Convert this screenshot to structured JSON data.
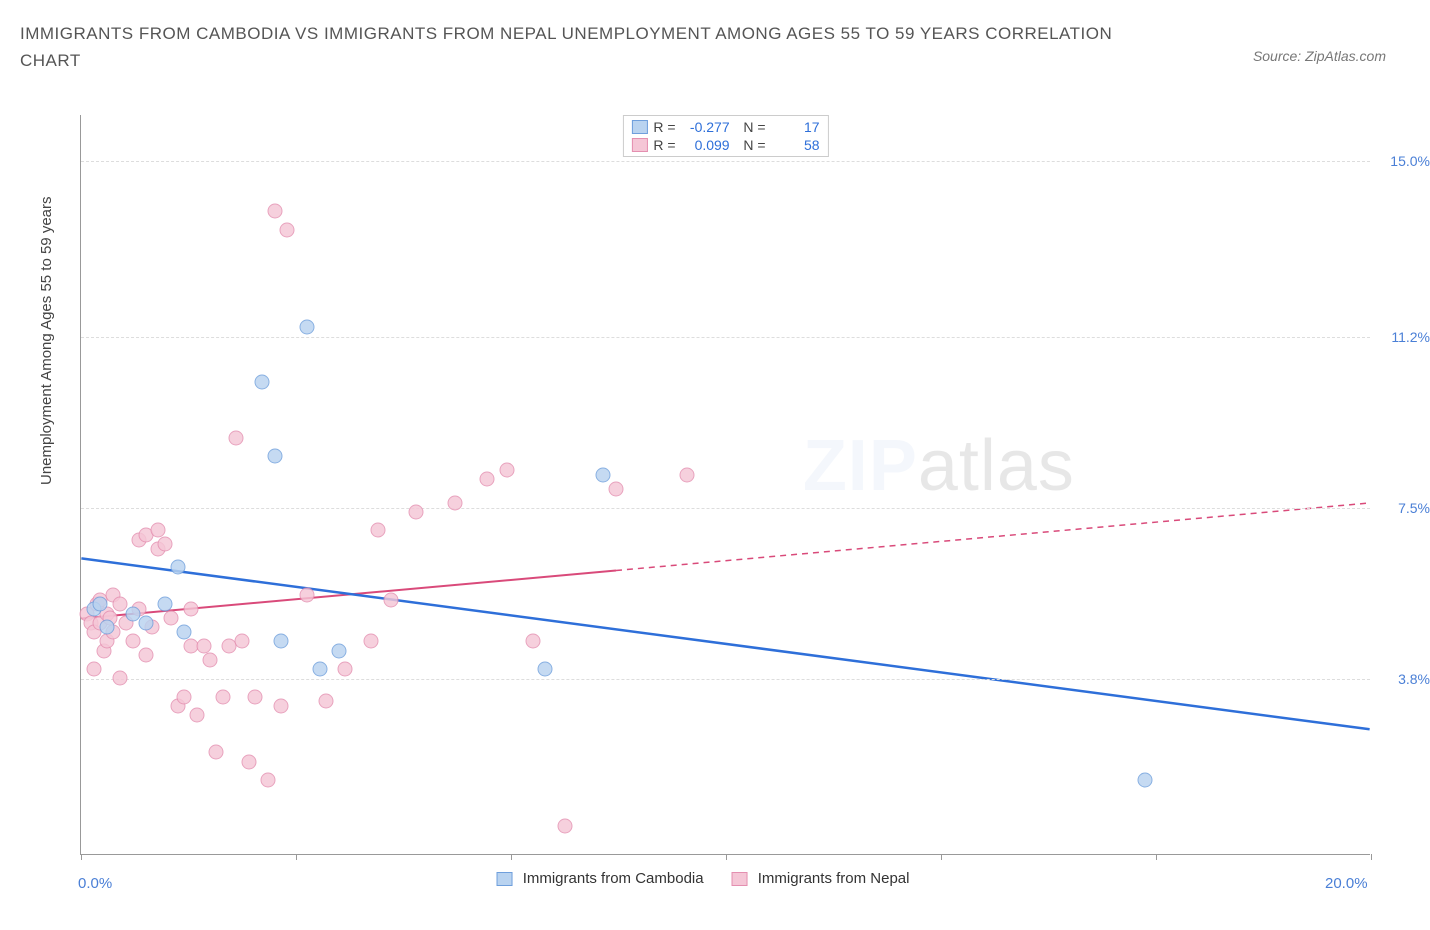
{
  "title": "IMMIGRANTS FROM CAMBODIA VS IMMIGRANTS FROM NEPAL UNEMPLOYMENT AMONG AGES 55 TO 59 YEARS CORRELATION CHART",
  "source": "Source: ZipAtlas.com",
  "ylabel": "Unemployment Among Ages 55 to 59 years",
  "xaxis": {
    "min_label": "0.0%",
    "max_label": "20.0%",
    "min": 0,
    "max": 20
  },
  "yaxis": {
    "min": 0,
    "max": 16,
    "ticks": [
      {
        "v": 3.8,
        "label": "3.8%"
      },
      {
        "v": 7.5,
        "label": "7.5%"
      },
      {
        "v": 11.2,
        "label": "11.2%"
      },
      {
        "v": 15.0,
        "label": "15.0%"
      }
    ]
  },
  "xticks_minor": [
    0,
    3.33,
    6.67,
    10,
    13.33,
    16.67,
    20
  ],
  "series": {
    "cambodia": {
      "label": "Immigrants from Cambodia",
      "fill": "#b9d3f0",
      "stroke": "#6f9fdc",
      "line_color": "#2e6fd9",
      "R": "-0.277",
      "N": "17",
      "trend": {
        "x1": 0,
        "y1": 6.4,
        "x2": 20,
        "y2": 2.7,
        "dashed": false,
        "solid_until_x": 20
      },
      "points": [
        {
          "x": 0.2,
          "y": 5.3
        },
        {
          "x": 0.3,
          "y": 5.4
        },
        {
          "x": 0.4,
          "y": 4.9
        },
        {
          "x": 0.8,
          "y": 5.2
        },
        {
          "x": 1.0,
          "y": 5.0
        },
        {
          "x": 1.3,
          "y": 5.4
        },
        {
          "x": 1.5,
          "y": 6.2
        },
        {
          "x": 1.6,
          "y": 4.8
        },
        {
          "x": 2.8,
          "y": 10.2
        },
        {
          "x": 3.0,
          "y": 8.6
        },
        {
          "x": 3.1,
          "y": 4.6
        },
        {
          "x": 3.5,
          "y": 11.4
        },
        {
          "x": 3.7,
          "y": 4.0
        },
        {
          "x": 4.0,
          "y": 4.4
        },
        {
          "x": 7.2,
          "y": 4.0
        },
        {
          "x": 8.1,
          "y": 8.2
        },
        {
          "x": 16.5,
          "y": 1.6
        }
      ]
    },
    "nepal": {
      "label": "Immigrants from Nepal",
      "fill": "#f5c6d6",
      "stroke": "#e48fb0",
      "line_color": "#d94a7a",
      "R": "0.099",
      "N": "58",
      "trend": {
        "x1": 0,
        "y1": 5.1,
        "x2": 20,
        "y2": 7.6,
        "dashed": true,
        "solid_until_x": 8.3
      },
      "points": [
        {
          "x": 0.1,
          "y": 5.2
        },
        {
          "x": 0.15,
          "y": 5.0
        },
        {
          "x": 0.2,
          "y": 4.0
        },
        {
          "x": 0.2,
          "y": 4.8
        },
        {
          "x": 0.25,
          "y": 5.4
        },
        {
          "x": 0.3,
          "y": 5.5
        },
        {
          "x": 0.3,
          "y": 5.0
        },
        {
          "x": 0.35,
          "y": 4.4
        },
        {
          "x": 0.4,
          "y": 4.6
        },
        {
          "x": 0.4,
          "y": 5.2
        },
        {
          "x": 0.45,
          "y": 5.1
        },
        {
          "x": 0.5,
          "y": 5.6
        },
        {
          "x": 0.5,
          "y": 4.8
        },
        {
          "x": 0.6,
          "y": 5.4
        },
        {
          "x": 0.6,
          "y": 3.8
        },
        {
          "x": 0.7,
          "y": 5.0
        },
        {
          "x": 0.8,
          "y": 4.6
        },
        {
          "x": 0.9,
          "y": 5.3
        },
        {
          "x": 0.9,
          "y": 6.8
        },
        {
          "x": 1.0,
          "y": 4.3
        },
        {
          "x": 1.0,
          "y": 6.9
        },
        {
          "x": 1.1,
          "y": 4.9
        },
        {
          "x": 1.2,
          "y": 6.6
        },
        {
          "x": 1.2,
          "y": 7.0
        },
        {
          "x": 1.3,
          "y": 6.7
        },
        {
          "x": 1.4,
          "y": 5.1
        },
        {
          "x": 1.5,
          "y": 3.2
        },
        {
          "x": 1.6,
          "y": 3.4
        },
        {
          "x": 1.7,
          "y": 5.3
        },
        {
          "x": 1.7,
          "y": 4.5
        },
        {
          "x": 1.8,
          "y": 3.0
        },
        {
          "x": 1.9,
          "y": 4.5
        },
        {
          "x": 2.0,
          "y": 4.2
        },
        {
          "x": 2.1,
          "y": 2.2
        },
        {
          "x": 2.2,
          "y": 3.4
        },
        {
          "x": 2.3,
          "y": 4.5
        },
        {
          "x": 2.4,
          "y": 9.0
        },
        {
          "x": 2.5,
          "y": 4.6
        },
        {
          "x": 2.6,
          "y": 2.0
        },
        {
          "x": 2.7,
          "y": 3.4
        },
        {
          "x": 2.9,
          "y": 1.6
        },
        {
          "x": 3.0,
          "y": 13.9
        },
        {
          "x": 3.1,
          "y": 3.2
        },
        {
          "x": 3.2,
          "y": 13.5
        },
        {
          "x": 3.5,
          "y": 5.6
        },
        {
          "x": 3.8,
          "y": 3.3
        },
        {
          "x": 4.1,
          "y": 4.0
        },
        {
          "x": 4.5,
          "y": 4.6
        },
        {
          "x": 4.6,
          "y": 7.0
        },
        {
          "x": 4.8,
          "y": 5.5
        },
        {
          "x": 5.2,
          "y": 7.4
        },
        {
          "x": 5.8,
          "y": 7.6
        },
        {
          "x": 6.3,
          "y": 8.1
        },
        {
          "x": 6.6,
          "y": 8.3
        },
        {
          "x": 7.0,
          "y": 4.6
        },
        {
          "x": 7.5,
          "y": 0.6
        },
        {
          "x": 8.3,
          "y": 7.9
        },
        {
          "x": 9.4,
          "y": 8.2
        }
      ]
    }
  },
  "watermark": {
    "a": "ZIP",
    "b": "atlas"
  },
  "colors": {
    "axis_text": "#4a7fd6",
    "grid": "#dddddd"
  }
}
